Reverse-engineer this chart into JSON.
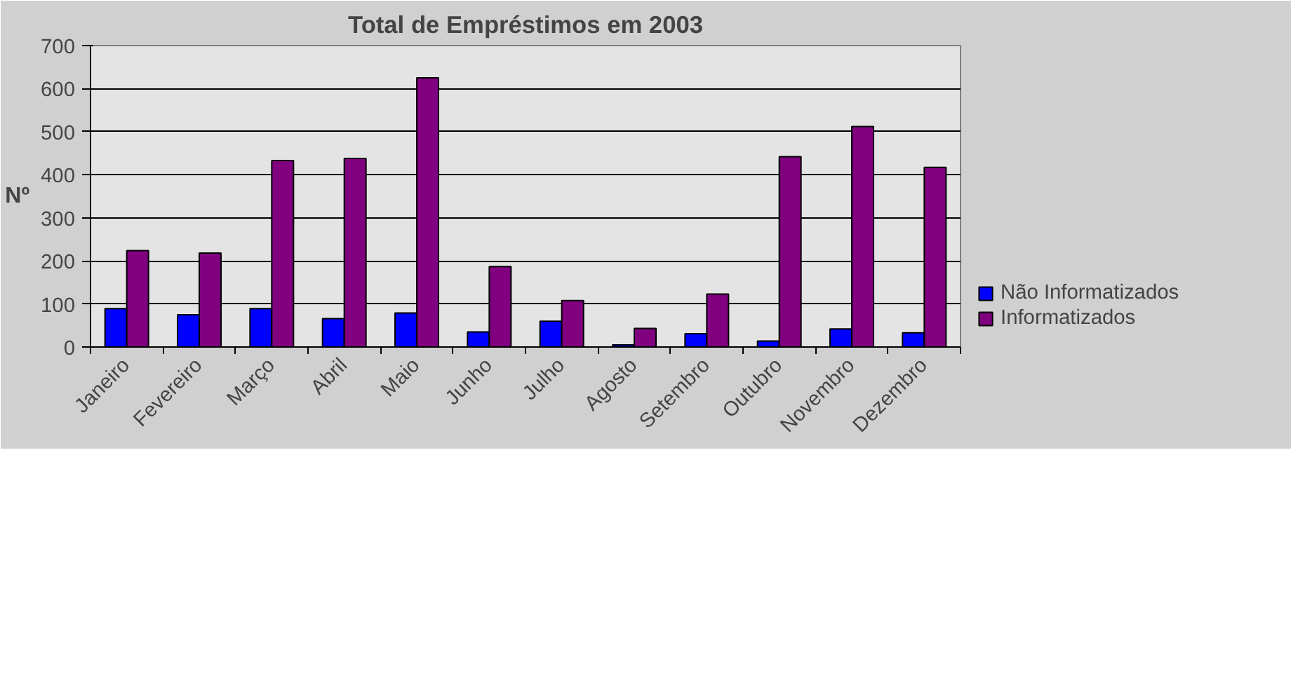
{
  "chart_data": {
    "type": "bar",
    "title": "Total de Empréstimos em 2003",
    "ylabel": "Nº",
    "categories": [
      "Janeiro",
      "Fevereiro",
      "Março",
      "Abril",
      "Maio",
      "Junho",
      "Julho",
      "Agosto",
      "Setembro",
      "Outubro",
      "Novembro",
      "Dezembro"
    ],
    "series": [
      {
        "name": "Não Informatizados",
        "color": "#0000ff",
        "values": [
          89,
          75,
          89,
          66,
          79,
          35,
          60,
          5,
          31,
          14,
          42,
          33
        ]
      },
      {
        "name": "Informatizados",
        "color": "#800080",
        "values": [
          224,
          218,
          433,
          438,
          625,
          187,
          108,
          43,
          123,
          442,
          512,
          417
        ]
      }
    ],
    "ylim": [
      0,
      700
    ],
    "yticks": [
      0,
      100,
      200,
      300,
      400,
      500,
      600,
      700
    ],
    "grid": "y",
    "legend": "bottom right"
  }
}
